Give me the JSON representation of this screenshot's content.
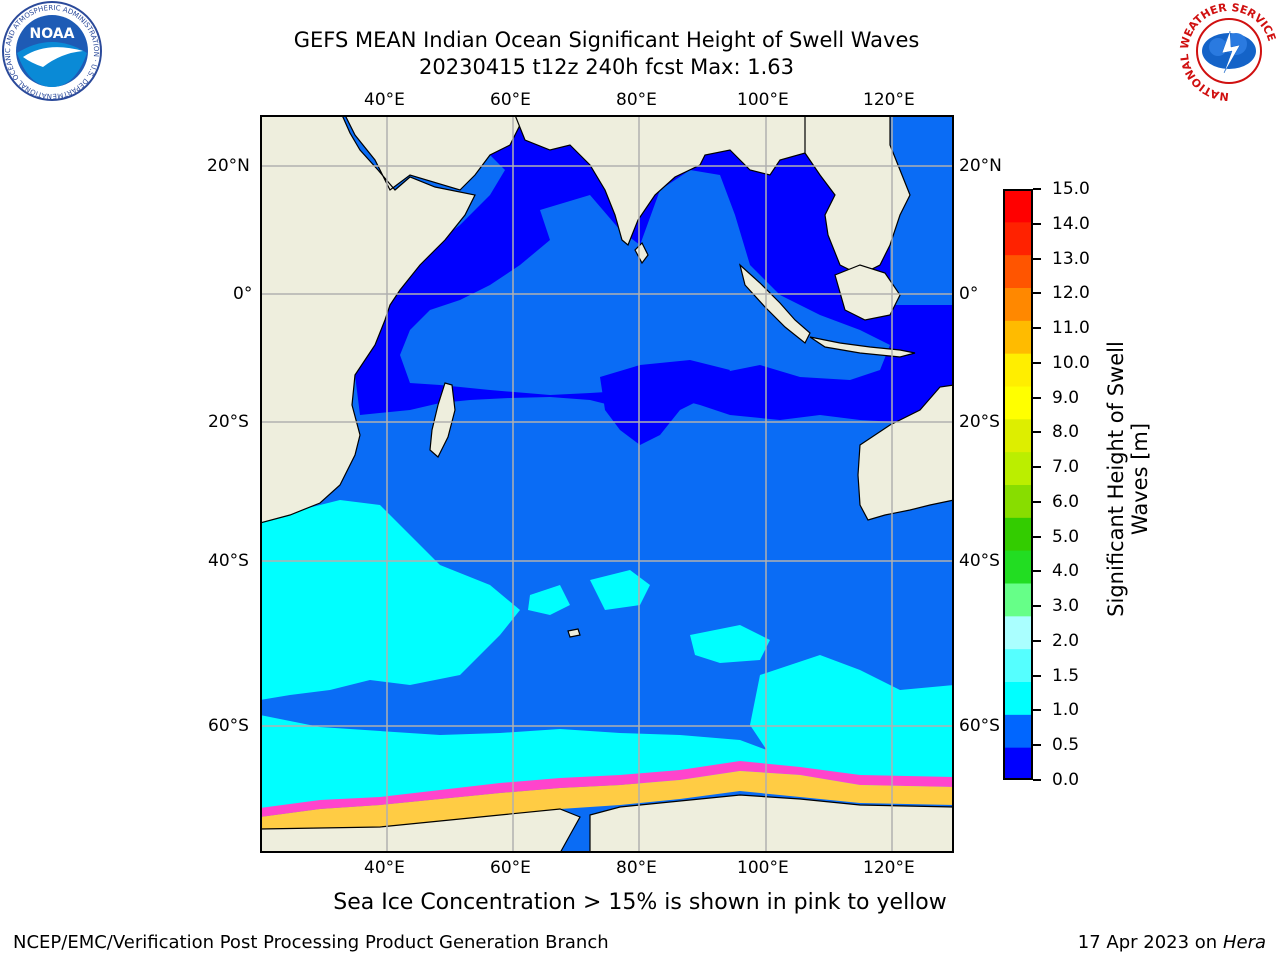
{
  "title_line1": "GEFS MEAN Indian Ocean Significant Height of Swell Waves",
  "title_line2": "20230415 t12z 240h fcst   Max: 1.63",
  "lon_labels": [
    "40°E",
    "60°E",
    "80°E",
    "100°E",
    "120°E"
  ],
  "lat_labels": [
    "20°N",
    "0°",
    "20°S",
    "40°S",
    "60°S"
  ],
  "colorbar": {
    "title": "Significant Height of Swell Waves [m]",
    "title_line1": "Significant Height of Swell",
    "title_line2": "Waves [m]",
    "tick_labels": [
      "0.0",
      "0.5",
      "1.0",
      "1.5",
      "2.0",
      "3.0",
      "4.0",
      "5.0",
      "6.0",
      "7.0",
      "8.0",
      "9.0",
      "10.0",
      "11.0",
      "12.0",
      "13.0",
      "14.0",
      "15.0"
    ],
    "colors": [
      "#0000ff",
      "#0066ff",
      "#00ffff",
      "#55ffff",
      "#aaffff",
      "#66ff88",
      "#22dd22",
      "#33cc00",
      "#88dd00",
      "#bbee00",
      "#ddee00",
      "#ffff00",
      "#ffee00",
      "#ffbb00",
      "#ff8800",
      "#ff5500",
      "#ff2200",
      "#ff0000"
    ]
  },
  "ice_note": "Sea Ice Concentration > 15% is shown in pink to yellow",
  "footer_left": "NCEP/EMC/Verification Post Processing Product Generation Branch",
  "footer_date": "17 Apr 2023 on",
  "footer_host": "Hera",
  "logos": {
    "noaa_text": "NOAA",
    "noaa_ring": "NATIONAL OCEANIC AND ATMOSPHERIC ADMINISTRATION · U.S. DEPARTMENT OF COMMERCE",
    "nws_ring": "NATIONAL WEATHER SERVICE"
  },
  "map_colors": {
    "land": "#eeeedd",
    "swell_0": "#0000ff",
    "swell_05": "#0a6cf5",
    "swell_1": "#00ffff",
    "swell_15": "#40f0e0",
    "ice_pink": "#ff44cc",
    "ice_yellow": "#ffcc44",
    "grid": "#b0b0b0"
  }
}
